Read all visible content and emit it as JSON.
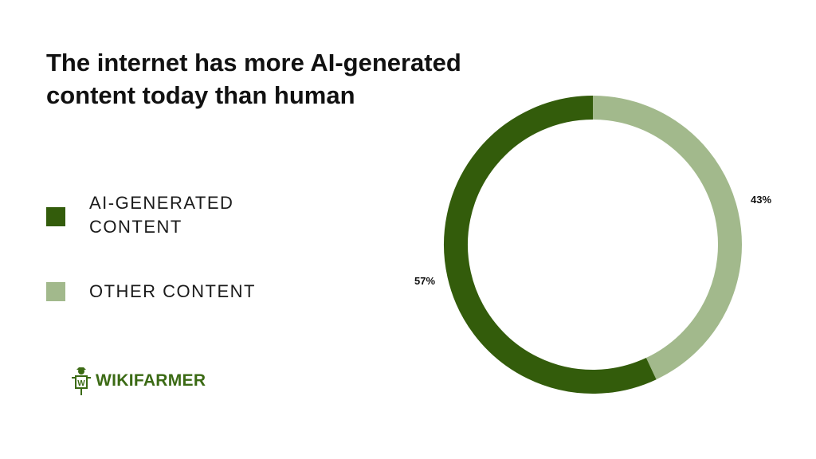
{
  "header": {
    "title": "The internet has more AI-generated content today than human"
  },
  "legend": {
    "items": [
      {
        "label": "AI-GENERATED CONTENT",
        "color": "#335c0b"
      },
      {
        "label": "OTHER CONTENT",
        "color": "#a2b98c"
      }
    ]
  },
  "brand": {
    "name": "WIKIFARMER",
    "logo_icon": "scarecrow-icon",
    "logo_letter": "W",
    "color": "#3b6a14"
  },
  "chart_data": {
    "type": "pie",
    "donut": true,
    "start_angle_deg": 0,
    "direction": "clockwise",
    "slices": [
      {
        "label": "OTHER CONTENT",
        "value": 43,
        "display": "43%",
        "color": "#a2b98c"
      },
      {
        "label": "AI-GENERATED CONTENT",
        "value": 57,
        "display": "57%",
        "color": "#335c0b"
      }
    ]
  }
}
